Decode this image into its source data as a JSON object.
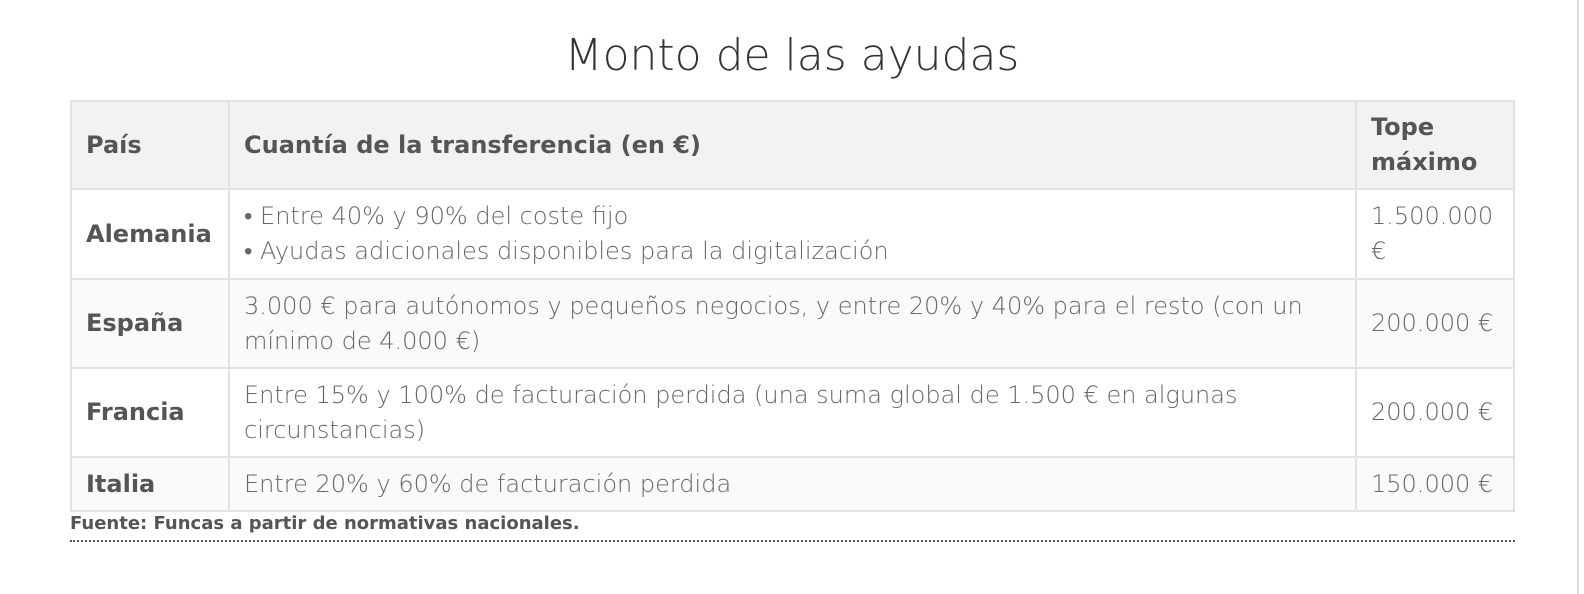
{
  "title": "Monto de las ayudas",
  "headers": [
    "País",
    "Cuantía de la transferencia (en €)",
    "Tope máximo"
  ],
  "rows": [
    {
      "country": "Alemania",
      "amount_items": [
        "• Entre 40% y 90% del coste fijo",
        "• Ayudas adicionales disponibles para la digitalización"
      ],
      "cap": "1.500.000 €"
    },
    {
      "country": "España",
      "amount": "3.000 € para autónomos y pequeños negocios, y entre 20% y 40% para el resto (con un mínimo de 4.000 €)",
      "cap": "200.000 €"
    },
    {
      "country": "Francia",
      "amount": "Entre 15% y 100% de facturación perdida (una suma global de 1.500 € en algunas circunstancias)",
      "cap": "200.000 €"
    },
    {
      "country": "Italia",
      "amount": "Entre 20% y 60% de facturación perdida",
      "cap": "150.000 €"
    }
  ],
  "source": "Fuente: Funcas a partir de normativas nacionales."
}
